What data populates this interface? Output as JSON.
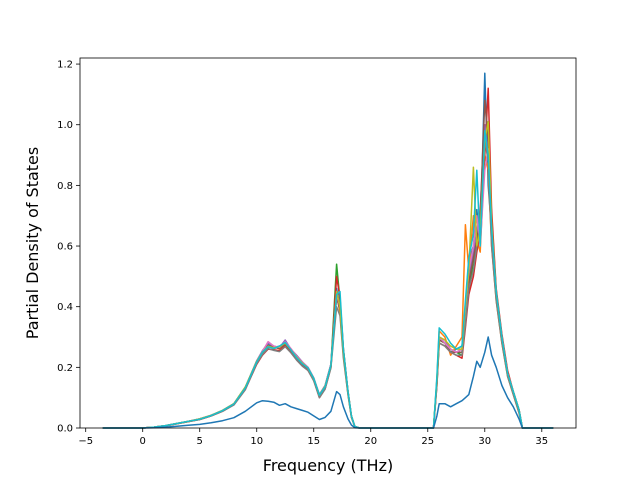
{
  "chart_data": {
    "type": "line",
    "xlabel": "Frequency (THz)",
    "ylabel": "Partial Density of States",
    "xlim": [
      -5.5,
      38
    ],
    "ylim": [
      0,
      1.22
    ],
    "x_ticks": [
      -5,
      0,
      5,
      10,
      15,
      20,
      25,
      30,
      35
    ],
    "y_ticks": [
      0.0,
      0.2,
      0.4,
      0.6,
      0.8,
      1.0,
      1.2
    ],
    "x_tick_labels": [
      "−5",
      "0",
      "5",
      "10",
      "15",
      "20",
      "25",
      "30",
      "35"
    ],
    "y_tick_labels": [
      "0.0",
      "0.2",
      "0.4",
      "0.6",
      "0.8",
      "1.0",
      "1.2"
    ],
    "grid": false,
    "legend": "none",
    "colors": [
      "#1f77b4",
      "#ff7f0e",
      "#2ca02c",
      "#d62728",
      "#9467bd",
      "#8c564b",
      "#e377c2",
      "#7f7f7f",
      "#bcbd22",
      "#17becf"
    ],
    "series": [
      {
        "x": [
          -3.5,
          0,
          1,
          2,
          3,
          4,
          5,
          6,
          7,
          8,
          9,
          10,
          10.5,
          11,
          11.5,
          12,
          12.5,
          13,
          13.5,
          14,
          14.5,
          15,
          15.5,
          16,
          16.5,
          17,
          17.3,
          17.6,
          18,
          18.3,
          18.6,
          19,
          25.5,
          25.8,
          26,
          26.5,
          27,
          27.5,
          28,
          28.3,
          28.6,
          29,
          29.3,
          29.6,
          30,
          30.3,
          30.6,
          31,
          31.5,
          32,
          32.5,
          33,
          33.3,
          36
        ],
        "y": [
          0,
          0,
          0.003,
          0.008,
          0.015,
          0.022,
          0.03,
          0.042,
          0.058,
          0.08,
          0.135,
          0.22,
          0.25,
          0.275,
          0.265,
          0.27,
          0.282,
          0.26,
          0.235,
          0.215,
          0.2,
          0.165,
          0.11,
          0.14,
          0.21,
          0.46,
          0.4,
          0.25,
          0.12,
          0.04,
          0.005,
          0,
          0,
          0.15,
          0.3,
          0.28,
          0.25,
          0.26,
          0.27,
          0.4,
          0.55,
          0.6,
          0.72,
          0.62,
          1.17,
          0.8,
          0.65,
          0.45,
          0.3,
          0.18,
          0.12,
          0.06,
          0,
          0
        ]
      },
      {
        "x": [
          -3.5,
          0,
          1,
          2,
          3,
          4,
          5,
          6,
          7,
          8,
          9,
          10,
          10.5,
          11,
          11.5,
          12,
          12.5,
          13,
          13.5,
          14,
          14.5,
          15,
          15.5,
          16,
          16.5,
          17,
          17.3,
          17.6,
          18,
          18.3,
          18.6,
          19,
          25.5,
          25.8,
          26,
          26.5,
          27,
          27.5,
          28,
          28.3,
          28.6,
          29,
          29.3,
          29.6,
          30,
          30.3,
          30.6,
          31,
          31.5,
          32,
          32.5,
          33,
          33.3,
          36
        ],
        "y": [
          0,
          0,
          0.003,
          0.007,
          0.014,
          0.021,
          0.028,
          0.04,
          0.056,
          0.078,
          0.13,
          0.215,
          0.245,
          0.265,
          0.27,
          0.26,
          0.275,
          0.255,
          0.23,
          0.21,
          0.195,
          0.16,
          0.105,
          0.13,
          0.2,
          0.44,
          0.38,
          0.24,
          0.11,
          0.035,
          0.004,
          0,
          0,
          0.16,
          0.32,
          0.3,
          0.24,
          0.27,
          0.3,
          0.67,
          0.52,
          0.7,
          0.62,
          0.58,
          0.9,
          0.85,
          0.6,
          0.42,
          0.28,
          0.17,
          0.11,
          0.05,
          0,
          0
        ]
      },
      {
        "x": [
          -3.5,
          0,
          1,
          2,
          3,
          4,
          5,
          6,
          7,
          8,
          9,
          10,
          10.5,
          11,
          11.5,
          12,
          12.5,
          13,
          13.5,
          14,
          14.5,
          15,
          15.5,
          16,
          16.5,
          17,
          17.3,
          17.6,
          18,
          18.3,
          18.6,
          19,
          25.5,
          25.8,
          26,
          26.5,
          27,
          27.5,
          28,
          28.3,
          28.6,
          29,
          29.3,
          29.6,
          30,
          30.3,
          30.6,
          31,
          31.5,
          32,
          32.5,
          33,
          33.3,
          36
        ],
        "y": [
          0,
          0,
          0.003,
          0.008,
          0.015,
          0.022,
          0.029,
          0.041,
          0.057,
          0.079,
          0.132,
          0.22,
          0.25,
          0.27,
          0.262,
          0.268,
          0.28,
          0.258,
          0.232,
          0.212,
          0.198,
          0.162,
          0.108,
          0.136,
          0.205,
          0.54,
          0.42,
          0.26,
          0.12,
          0.04,
          0.005,
          0,
          0,
          0.15,
          0.29,
          0.28,
          0.26,
          0.25,
          0.24,
          0.35,
          0.45,
          0.55,
          0.6,
          0.7,
          0.95,
          1.0,
          0.7,
          0.45,
          0.3,
          0.18,
          0.12,
          0.06,
          0,
          0
        ]
      },
      {
        "x": [
          -3.5,
          0,
          1,
          2,
          3,
          4,
          5,
          6,
          7,
          8,
          9,
          10,
          10.5,
          11,
          11.5,
          12,
          12.5,
          13,
          13.5,
          14,
          14.5,
          15,
          15.5,
          16,
          16.5,
          17,
          17.3,
          17.6,
          18,
          18.3,
          18.6,
          19,
          25.5,
          25.8,
          26,
          26.5,
          27,
          27.5,
          28,
          28.3,
          28.6,
          29,
          29.3,
          29.6,
          30,
          30.3,
          30.6,
          31,
          31.5,
          32,
          32.5,
          33,
          33.3,
          36
        ],
        "y": [
          0,
          0,
          0.003,
          0.007,
          0.014,
          0.021,
          0.028,
          0.04,
          0.055,
          0.077,
          0.128,
          0.21,
          0.24,
          0.26,
          0.258,
          0.255,
          0.27,
          0.25,
          0.225,
          0.205,
          0.19,
          0.158,
          0.1,
          0.13,
          0.2,
          0.5,
          0.43,
          0.26,
          0.12,
          0.04,
          0.005,
          0,
          0,
          0.14,
          0.28,
          0.27,
          0.25,
          0.24,
          0.23,
          0.33,
          0.44,
          0.5,
          0.58,
          0.65,
          0.9,
          1.12,
          0.72,
          0.46,
          0.31,
          0.19,
          0.12,
          0.06,
          0,
          0
        ]
      },
      {
        "x": [
          -3.5,
          0,
          1,
          2,
          3,
          4,
          5,
          6,
          7,
          8,
          9,
          10,
          10.5,
          11,
          11.5,
          12,
          12.5,
          13,
          13.5,
          14,
          14.5,
          15,
          15.5,
          16,
          16.5,
          17,
          17.3,
          17.6,
          18,
          18.3,
          18.6,
          19,
          25.5,
          25.8,
          26,
          26.5,
          27,
          27.5,
          28,
          28.3,
          28.6,
          29,
          29.3,
          29.6,
          30,
          30.3,
          30.6,
          31,
          31.5,
          32,
          32.5,
          33,
          33.3,
          36
        ],
        "y": [
          0,
          0,
          0.003,
          0.008,
          0.015,
          0.022,
          0.03,
          0.042,
          0.058,
          0.08,
          0.134,
          0.222,
          0.255,
          0.28,
          0.27,
          0.265,
          0.29,
          0.26,
          0.24,
          0.218,
          0.2,
          0.165,
          0.11,
          0.14,
          0.21,
          0.45,
          0.4,
          0.25,
          0.12,
          0.04,
          0.005,
          0,
          0,
          0.15,
          0.3,
          0.29,
          0.26,
          0.25,
          0.26,
          0.38,
          0.5,
          0.58,
          0.65,
          0.72,
          1.0,
          0.9,
          0.62,
          0.44,
          0.3,
          0.18,
          0.12,
          0.06,
          0,
          0
        ]
      },
      {
        "x": [
          -3.5,
          0,
          1,
          2,
          3,
          4,
          5,
          6,
          7,
          8,
          9,
          10,
          10.5,
          11,
          11.5,
          12,
          12.5,
          13,
          13.5,
          14,
          14.5,
          15,
          15.5,
          16,
          16.5,
          17,
          17.3,
          17.6,
          18,
          18.3,
          18.6,
          19,
          25.5,
          25.8,
          26,
          26.5,
          27,
          27.5,
          28,
          28.3,
          28.6,
          29,
          29.3,
          29.6,
          30,
          30.3,
          30.6,
          31,
          31.5,
          32,
          32.5,
          33,
          33.3,
          36
        ],
        "y": [
          0,
          0,
          0.003,
          0.008,
          0.015,
          0.022,
          0.029,
          0.041,
          0.056,
          0.078,
          0.13,
          0.218,
          0.248,
          0.272,
          0.266,
          0.262,
          0.276,
          0.256,
          0.23,
          0.21,
          0.196,
          0.162,
          0.106,
          0.134,
          0.203,
          0.43,
          0.39,
          0.24,
          0.115,
          0.038,
          0.005,
          0,
          0,
          0.15,
          0.29,
          0.28,
          0.25,
          0.25,
          0.25,
          0.36,
          0.48,
          0.56,
          0.62,
          0.7,
          1.08,
          0.95,
          0.66,
          0.44,
          0.3,
          0.18,
          0.12,
          0.06,
          0,
          0
        ]
      },
      {
        "x": [
          -3.5,
          0,
          1,
          2,
          3,
          4,
          5,
          6,
          7,
          8,
          9,
          10,
          10.5,
          11,
          11.5,
          12,
          12.5,
          13,
          13.5,
          14,
          14.5,
          15,
          15.5,
          16,
          16.5,
          17,
          17.3,
          17.6,
          18,
          18.3,
          18.6,
          19,
          25.5,
          25.8,
          26,
          26.5,
          27,
          27.5,
          28,
          28.3,
          28.6,
          29,
          29.3,
          29.6,
          30,
          30.3,
          30.6,
          31,
          31.5,
          32,
          32.5,
          33,
          33.3,
          36
        ],
        "y": [
          0,
          0,
          0.003,
          0.008,
          0.015,
          0.022,
          0.03,
          0.042,
          0.057,
          0.079,
          0.133,
          0.22,
          0.252,
          0.285,
          0.27,
          0.266,
          0.284,
          0.262,
          0.236,
          0.216,
          0.2,
          0.166,
          0.108,
          0.138,
          0.207,
          0.44,
          0.4,
          0.25,
          0.12,
          0.04,
          0.005,
          0,
          0,
          0.15,
          0.3,
          0.28,
          0.26,
          0.25,
          0.26,
          0.39,
          0.52,
          0.6,
          0.7,
          0.6,
          0.85,
          0.92,
          0.64,
          0.44,
          0.3,
          0.18,
          0.12,
          0.06,
          0,
          0
        ]
      },
      {
        "x": [
          -3.5,
          0,
          1,
          2,
          3,
          4,
          5,
          6,
          7,
          8,
          9,
          10,
          10.5,
          11,
          11.5,
          12,
          12.5,
          13,
          13.5,
          14,
          14.5,
          15,
          15.5,
          16,
          16.5,
          17,
          17.3,
          17.6,
          18,
          18.3,
          18.6,
          19,
          25.5,
          25.8,
          26,
          26.5,
          27,
          27.5,
          28,
          28.3,
          28.6,
          29,
          29.3,
          29.6,
          30,
          30.3,
          30.6,
          31,
          31.5,
          32,
          32.5,
          33,
          33.3,
          36
        ],
        "y": [
          0,
          0,
          0.003,
          0.007,
          0.014,
          0.021,
          0.028,
          0.04,
          0.055,
          0.076,
          0.126,
          0.212,
          0.242,
          0.262,
          0.256,
          0.252,
          0.268,
          0.248,
          0.224,
          0.204,
          0.19,
          0.156,
          0.1,
          0.128,
          0.198,
          0.4,
          0.37,
          0.23,
          0.11,
          0.035,
          0.004,
          0,
          0,
          0.14,
          0.28,
          0.27,
          0.25,
          0.24,
          0.24,
          0.34,
          0.46,
          0.52,
          0.6,
          0.66,
          0.95,
          0.88,
          0.6,
          0.42,
          0.28,
          0.17,
          0.11,
          0.05,
          0,
          0
        ]
      },
      {
        "x": [
          -3.5,
          0,
          1,
          2,
          3,
          4,
          5,
          6,
          7,
          8,
          9,
          10,
          10.5,
          11,
          11.5,
          12,
          12.5,
          13,
          13.5,
          14,
          14.5,
          15,
          15.5,
          16,
          16.5,
          17,
          17.3,
          17.6,
          18,
          18.3,
          18.6,
          19,
          25.5,
          25.8,
          26,
          26.5,
          27,
          27.5,
          28,
          28.3,
          28.6,
          29,
          29.3,
          29.6,
          30,
          30.3,
          30.6,
          31,
          31.5,
          32,
          32.5,
          33,
          33.3,
          36
        ],
        "y": [
          0,
          0,
          0.003,
          0.008,
          0.015,
          0.022,
          0.03,
          0.042,
          0.058,
          0.08,
          0.135,
          0.22,
          0.25,
          0.27,
          0.264,
          0.268,
          0.28,
          0.258,
          0.234,
          0.214,
          0.198,
          0.164,
          0.108,
          0.138,
          0.206,
          0.45,
          0.4,
          0.25,
          0.12,
          0.04,
          0.005,
          0,
          0,
          0.16,
          0.3,
          0.29,
          0.27,
          0.26,
          0.26,
          0.4,
          0.52,
          0.86,
          0.6,
          0.65,
          0.95,
          1.01,
          0.68,
          0.45,
          0.3,
          0.18,
          0.12,
          0.06,
          0,
          0
        ]
      },
      {
        "x": [
          -3.5,
          0,
          1,
          2,
          3,
          4,
          5,
          6,
          7,
          8,
          9,
          10,
          10.5,
          11,
          11.5,
          12,
          12.5,
          13,
          13.5,
          14,
          14.5,
          15,
          15.5,
          16,
          16.5,
          17,
          17.3,
          17.6,
          18,
          18.3,
          18.6,
          19,
          25.5,
          25.8,
          26,
          26.5,
          27,
          27.5,
          28,
          28.3,
          28.6,
          29,
          29.3,
          29.6,
          30,
          30.3,
          30.6,
          31,
          31.5,
          32,
          32.5,
          33,
          33.3,
          36
        ],
        "y": [
          0,
          0,
          0.003,
          0.008,
          0.015,
          0.022,
          0.029,
          0.041,
          0.057,
          0.079,
          0.132,
          0.218,
          0.25,
          0.268,
          0.262,
          0.27,
          0.282,
          0.258,
          0.232,
          0.212,
          0.198,
          0.164,
          0.108,
          0.136,
          0.206,
          0.44,
          0.45,
          0.26,
          0.12,
          0.04,
          0.005,
          0,
          0,
          0.17,
          0.33,
          0.31,
          0.28,
          0.26,
          0.27,
          0.42,
          0.56,
          0.64,
          0.85,
          0.6,
          0.98,
          0.9,
          0.66,
          0.45,
          0.3,
          0.18,
          0.12,
          0.06,
          0,
          0
        ]
      },
      {
        "x": [
          -3.5,
          0,
          1,
          2,
          3,
          4,
          5,
          6,
          7,
          8,
          9,
          10,
          10.5,
          11,
          11.5,
          12,
          12.5,
          13,
          13.5,
          14,
          14.5,
          15,
          15.5,
          16,
          16.5,
          17,
          17.3,
          17.6,
          18,
          18.3,
          18.6,
          19,
          25.5,
          25.8,
          26,
          26.5,
          27,
          27.5,
          28,
          28.3,
          28.6,
          29,
          29.3,
          29.6,
          30,
          30.3,
          30.6,
          31,
          31.5,
          32,
          32.5,
          33,
          33.3,
          36
        ],
        "y": [
          0,
          0,
          0.001,
          0.003,
          0.006,
          0.009,
          0.012,
          0.017,
          0.024,
          0.034,
          0.055,
          0.083,
          0.09,
          0.088,
          0.085,
          0.075,
          0.08,
          0.07,
          0.064,
          0.058,
          0.052,
          0.04,
          0.028,
          0.035,
          0.055,
          0.12,
          0.11,
          0.07,
          0.03,
          0.01,
          0.001,
          0,
          0,
          0.04,
          0.08,
          0.08,
          0.07,
          0.08,
          0.09,
          0.1,
          0.11,
          0.17,
          0.22,
          0.2,
          0.25,
          0.3,
          0.24,
          0.2,
          0.14,
          0.1,
          0.07,
          0.03,
          0,
          0
        ]
      }
    ]
  }
}
